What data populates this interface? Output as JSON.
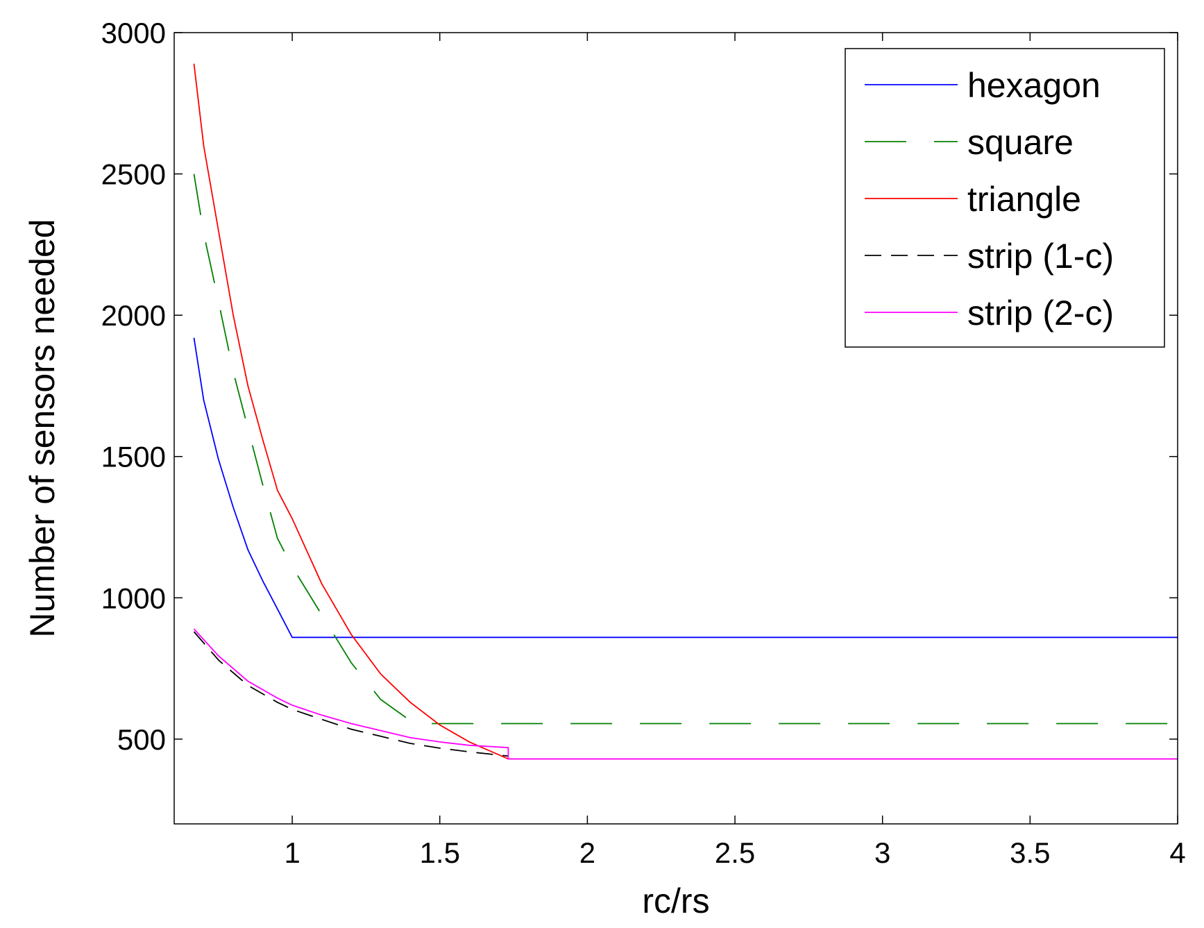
{
  "chart_data": {
    "type": "line",
    "title": "",
    "xlabel": "rc/rs",
    "ylabel": "Number of sensors needed",
    "xlim": [
      0.6,
      4
    ],
    "ylim": [
      200,
      3000
    ],
    "xticks": [
      1,
      1.5,
      2,
      2.5,
      3,
      3.5,
      4
    ],
    "xtick_labels": [
      "1",
      "1.5",
      "2",
      "2.5",
      "3",
      "3.5",
      "4"
    ],
    "yticks": [
      500,
      1000,
      1500,
      2000,
      2500,
      3000
    ],
    "ytick_labels": [
      "500",
      "1000",
      "1500",
      "2000",
      "2500",
      "3000"
    ],
    "grid": false,
    "legend_position": "top-right",
    "series": [
      {
        "name": "hexagon",
        "color": "#0000ff",
        "dash": "solid",
        "points": [
          [
            0.667,
            1920
          ],
          [
            0.7,
            1700
          ],
          [
            0.75,
            1490
          ],
          [
            0.8,
            1320
          ],
          [
            0.85,
            1170
          ],
          [
            0.9,
            1060
          ],
          [
            0.95,
            960
          ],
          [
            1.0,
            860
          ],
          [
            4.0,
            860
          ]
        ]
      },
      {
        "name": "square",
        "color": "#008000",
        "dash": "long-dash",
        "points": [
          [
            0.667,
            2500
          ],
          [
            0.7,
            2290
          ],
          [
            0.75,
            2050
          ],
          [
            0.8,
            1800
          ],
          [
            0.85,
            1600
          ],
          [
            0.9,
            1400
          ],
          [
            0.95,
            1210
          ],
          [
            1.0,
            1110
          ],
          [
            1.1,
            940
          ],
          [
            1.2,
            770
          ],
          [
            1.3,
            640
          ],
          [
            1.414,
            555
          ],
          [
            4.0,
            555
          ]
        ]
      },
      {
        "name": "triangle",
        "color": "#ff0000",
        "dash": "solid",
        "points": [
          [
            0.667,
            2890
          ],
          [
            0.7,
            2600
          ],
          [
            0.75,
            2300
          ],
          [
            0.8,
            2000
          ],
          [
            0.85,
            1750
          ],
          [
            0.9,
            1560
          ],
          [
            0.95,
            1380
          ],
          [
            1.0,
            1280
          ],
          [
            1.1,
            1050
          ],
          [
            1.2,
            870
          ],
          [
            1.3,
            730
          ],
          [
            1.4,
            630
          ],
          [
            1.5,
            550
          ],
          [
            1.6,
            490
          ],
          [
            1.732,
            430
          ],
          [
            4.0,
            430
          ]
        ]
      },
      {
        "name": "strip (1-c)",
        "color": "#000000",
        "dash": "dash",
        "points": [
          [
            0.667,
            880
          ],
          [
            0.75,
            780
          ],
          [
            0.85,
            690
          ],
          [
            0.95,
            630
          ],
          [
            1.0,
            605
          ],
          [
            1.1,
            570
          ],
          [
            1.2,
            535
          ],
          [
            1.3,
            510
          ],
          [
            1.4,
            485
          ],
          [
            1.5,
            468
          ],
          [
            1.6,
            455
          ],
          [
            1.732,
            440
          ]
        ]
      },
      {
        "name": "strip (2-c)",
        "color": "#ff00ff",
        "dash": "solid",
        "points": [
          [
            0.667,
            890
          ],
          [
            0.75,
            795
          ],
          [
            0.85,
            705
          ],
          [
            0.95,
            645
          ],
          [
            1.0,
            620
          ],
          [
            1.1,
            585
          ],
          [
            1.2,
            555
          ],
          [
            1.3,
            530
          ],
          [
            1.4,
            505
          ],
          [
            1.5,
            490
          ],
          [
            1.6,
            478
          ],
          [
            1.732,
            470
          ],
          [
            1.732,
            430
          ],
          [
            4.0,
            430
          ]
        ]
      }
    ]
  }
}
